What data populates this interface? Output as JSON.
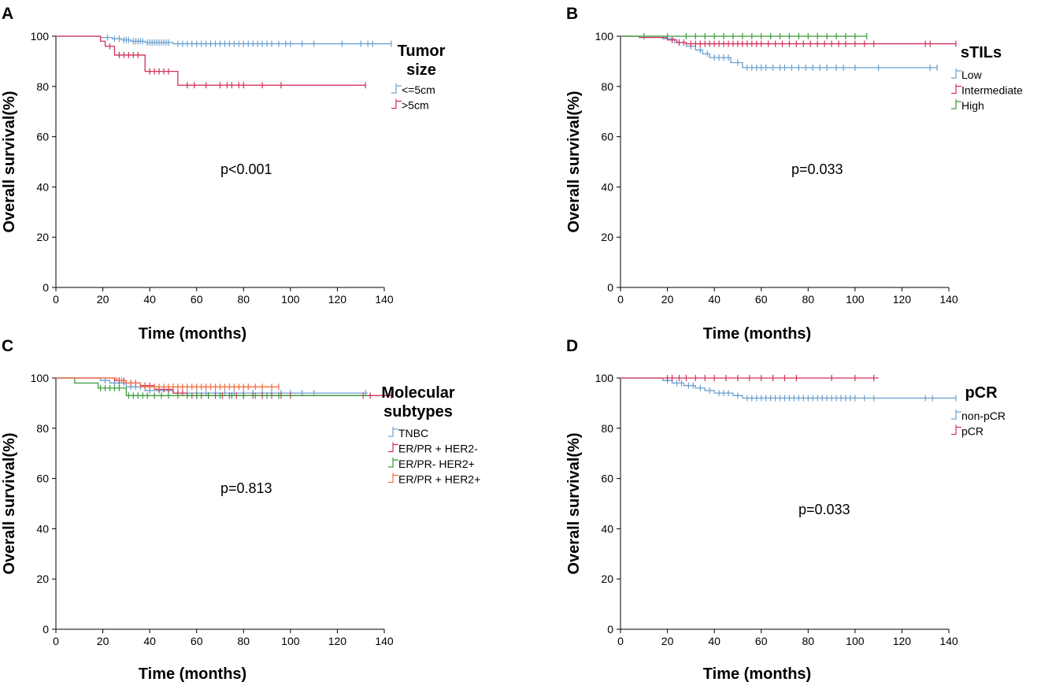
{
  "chart_data": [
    {
      "type": "line",
      "panel_label": "A",
      "xlabel": "Time (months)",
      "ylabel": "Overall survival(%)",
      "xlim": [
        0,
        140
      ],
      "ylim": [
        0,
        100
      ],
      "xticks": [
        0,
        20,
        40,
        60,
        80,
        100,
        120,
        140
      ],
      "yticks": [
        0,
        20,
        40,
        60,
        80,
        100
      ],
      "grid": false,
      "legend_title_lines": [
        "Tumor",
        "size"
      ],
      "legend_position": "right",
      "annotation": "p<0.001",
      "series": [
        {
          "name": "<=5cm",
          "color": "#6aa0d0",
          "steps": [
            [
              0,
              100
            ],
            [
              19,
              99.5
            ],
            [
              24,
              99
            ],
            [
              28,
              98.5
            ],
            [
              32,
              98
            ],
            [
              38,
              97.5
            ],
            [
              50,
              97
            ],
            [
              143,
              97
            ]
          ],
          "censored": [
            22,
            25,
            27,
            29,
            30,
            31,
            33,
            34,
            35,
            36,
            37,
            39,
            40,
            41,
            42,
            43,
            44,
            45,
            46,
            47,
            48,
            52,
            54,
            56,
            58,
            60,
            62,
            64,
            66,
            68,
            70,
            72,
            74,
            76,
            78,
            80,
            82,
            84,
            86,
            88,
            90,
            92,
            95,
            98,
            100,
            105,
            110,
            122,
            130,
            133,
            135,
            143
          ]
        },
        {
          "name": ">5cm",
          "color": "#d4305a",
          "steps": [
            [
              0,
              100
            ],
            [
              19,
              98
            ],
            [
              21,
              96
            ],
            [
              25,
              92.5
            ],
            [
              38,
              86
            ],
            [
              52,
              80.5
            ],
            [
              132,
              80.5
            ]
          ],
          "censored": [
            23,
            27,
            29,
            31,
            33,
            35,
            40,
            42,
            44,
            46,
            48,
            56,
            59,
            64,
            70,
            73,
            75,
            78,
            80,
            88,
            96,
            132
          ]
        }
      ]
    },
    {
      "type": "line",
      "panel_label": "B",
      "xlabel": "Time (months)",
      "ylabel": "Overall survival(%)",
      "xlim": [
        0,
        140
      ],
      "ylim": [
        0,
        100
      ],
      "xticks": [
        0,
        20,
        40,
        60,
        80,
        100,
        120,
        140
      ],
      "yticks": [
        0,
        20,
        40,
        60,
        80,
        100
      ],
      "grid": false,
      "legend_title_lines": [
        "sTILs"
      ],
      "legend_position": "right",
      "annotation": "p=0.033",
      "series": [
        {
          "name": "Low",
          "color": "#6aa0d0",
          "steps": [
            [
              0,
              100
            ],
            [
              18,
              99
            ],
            [
              23,
              97.5
            ],
            [
              28,
              96
            ],
            [
              32,
              94.5
            ],
            [
              35,
              93
            ],
            [
              38,
              91.5
            ],
            [
              47,
              89.5
            ],
            [
              52,
              87.5
            ],
            [
              135,
              87.5
            ]
          ],
          "censored": [
            25,
            30,
            34,
            37,
            40,
            42,
            44,
            46,
            50,
            54,
            56,
            58,
            60,
            62,
            65,
            68,
            70,
            73,
            76,
            79,
            82,
            85,
            88,
            92,
            95,
            100,
            110,
            132,
            135
          ]
        },
        {
          "name": "Intermediate",
          "color": "#d4305a",
          "steps": [
            [
              0,
              100
            ],
            [
              8,
              99.5
            ],
            [
              20,
              98.5
            ],
            [
              24,
              97.5
            ],
            [
              28,
              97
            ],
            [
              143,
              97
            ]
          ],
          "censored": [
            22,
            25,
            27,
            30,
            32,
            34,
            36,
            38,
            40,
            42,
            44,
            46,
            48,
            50,
            52,
            54,
            56,
            58,
            60,
            63,
            66,
            69,
            72,
            75,
            78,
            81,
            84,
            87,
            90,
            93,
            96,
            100,
            104,
            108,
            130,
            132,
            143
          ]
        },
        {
          "name": "High",
          "color": "#3a9a3a",
          "steps": [
            [
              0,
              100
            ],
            [
              105,
              100
            ]
          ],
          "censored": [
            10,
            20,
            28,
            32,
            36,
            40,
            44,
            48,
            52,
            56,
            60,
            64,
            68,
            72,
            76,
            80,
            84,
            88,
            92,
            96,
            100,
            105
          ]
        }
      ]
    },
    {
      "type": "line",
      "panel_label": "C",
      "xlabel": "Time (months)",
      "ylabel": "Overall survival(%)",
      "xlim": [
        0,
        140
      ],
      "ylim": [
        0,
        100
      ],
      "xticks": [
        0,
        20,
        40,
        60,
        80,
        100,
        120,
        140
      ],
      "yticks": [
        0,
        20,
        40,
        60,
        80,
        100
      ],
      "grid": false,
      "legend_title_lines": [
        "Molecular",
        "subtypes"
      ],
      "legend_position": "right",
      "annotation": "p=0.813",
      "series": [
        {
          "name": "TNBC",
          "color": "#6aa0d0",
          "steps": [
            [
              0,
              100
            ],
            [
              19,
              99
            ],
            [
              23,
              98
            ],
            [
              30,
              96.5
            ],
            [
              38,
              95
            ],
            [
              50,
              94
            ],
            [
              133,
              94
            ]
          ],
          "censored": [
            21,
            25,
            27,
            29,
            32,
            34,
            36,
            40,
            44,
            48,
            52,
            56,
            60,
            64,
            68,
            72,
            76,
            80,
            84,
            88,
            92,
            96,
            100,
            105,
            110,
            132
          ]
        },
        {
          "name": "ER/PR + HER2-",
          "color": "#d4305a",
          "steps": [
            [
              0,
              100
            ],
            [
              25,
              99
            ],
            [
              30,
              98
            ],
            [
              36,
              97
            ],
            [
              42,
              95.5
            ],
            [
              50,
              94
            ],
            [
              56,
              93
            ],
            [
              143,
              93
            ]
          ],
          "censored": [
            27,
            29,
            32,
            34,
            38,
            40,
            44,
            46,
            48,
            52,
            54,
            58,
            60,
            62,
            65,
            68,
            71,
            74,
            77,
            80,
            84,
            88,
            92,
            96,
            100,
            131,
            134,
            143
          ]
        },
        {
          "name": "ER/PR- HER2+",
          "color": "#3a9a3a",
          "steps": [
            [
              0,
              100
            ],
            [
              8,
              98
            ],
            [
              18,
              96
            ],
            [
              30,
              93
            ],
            [
              133,
              93
            ]
          ],
          "censored": [
            19,
            21,
            23,
            25,
            27,
            31,
            33,
            35,
            37,
            39,
            42,
            45,
            48,
            52,
            56,
            60,
            65,
            70,
            75,
            80,
            85,
            90,
            95
          ]
        },
        {
          "name": "ER/PR + HER2+",
          "color": "#f07040",
          "steps": [
            [
              0,
              100
            ],
            [
              26,
              99
            ],
            [
              30,
              98
            ],
            [
              36,
              96.5
            ],
            [
              95,
              96.5
            ]
          ],
          "censored": [
            28,
            32,
            34,
            38,
            40,
            42,
            44,
            46,
            48,
            50,
            52,
            54,
            56,
            58,
            60,
            62,
            64,
            66,
            68,
            70,
            72,
            74,
            76,
            78,
            80,
            82,
            85,
            88,
            92,
            95
          ]
        }
      ]
    },
    {
      "type": "line",
      "panel_label": "D",
      "xlabel": "Time (months)",
      "ylabel": "Overall survival(%)",
      "xlim": [
        0,
        140
      ],
      "ylim": [
        0,
        100
      ],
      "xticks": [
        0,
        20,
        40,
        60,
        80,
        100,
        120,
        140
      ],
      "yticks": [
        0,
        20,
        40,
        60,
        80,
        100
      ],
      "grid": false,
      "legend_title_lines": [
        "pCR"
      ],
      "legend_position": "right",
      "annotation": "p=0.033",
      "series": [
        {
          "name": "non-pCR",
          "color": "#6aa0d0",
          "steps": [
            [
              0,
              100
            ],
            [
              18,
              99
            ],
            [
              22,
              98
            ],
            [
              27,
              97
            ],
            [
              32,
              96
            ],
            [
              36,
              95
            ],
            [
              40,
              94
            ],
            [
              48,
              93
            ],
            [
              52,
              92
            ],
            [
              143,
              92
            ]
          ],
          "censored": [
            20,
            24,
            26,
            29,
            31,
            34,
            38,
            42,
            44,
            46,
            50,
            54,
            56,
            58,
            60,
            62,
            64,
            66,
            68,
            70,
            72,
            74,
            76,
            78,
            80,
            82,
            84,
            86,
            88,
            90,
            92,
            94,
            96,
            98,
            100,
            104,
            108,
            130,
            133,
            143
          ]
        },
        {
          "name": "pCR",
          "color": "#d4305a",
          "steps": [
            [
              0,
              100
            ],
            [
              110,
              100
            ]
          ],
          "censored": [
            20,
            22,
            25,
            28,
            32,
            36,
            40,
            45,
            50,
            55,
            60,
            65,
            70,
            75,
            90,
            100,
            108
          ]
        }
      ]
    }
  ]
}
